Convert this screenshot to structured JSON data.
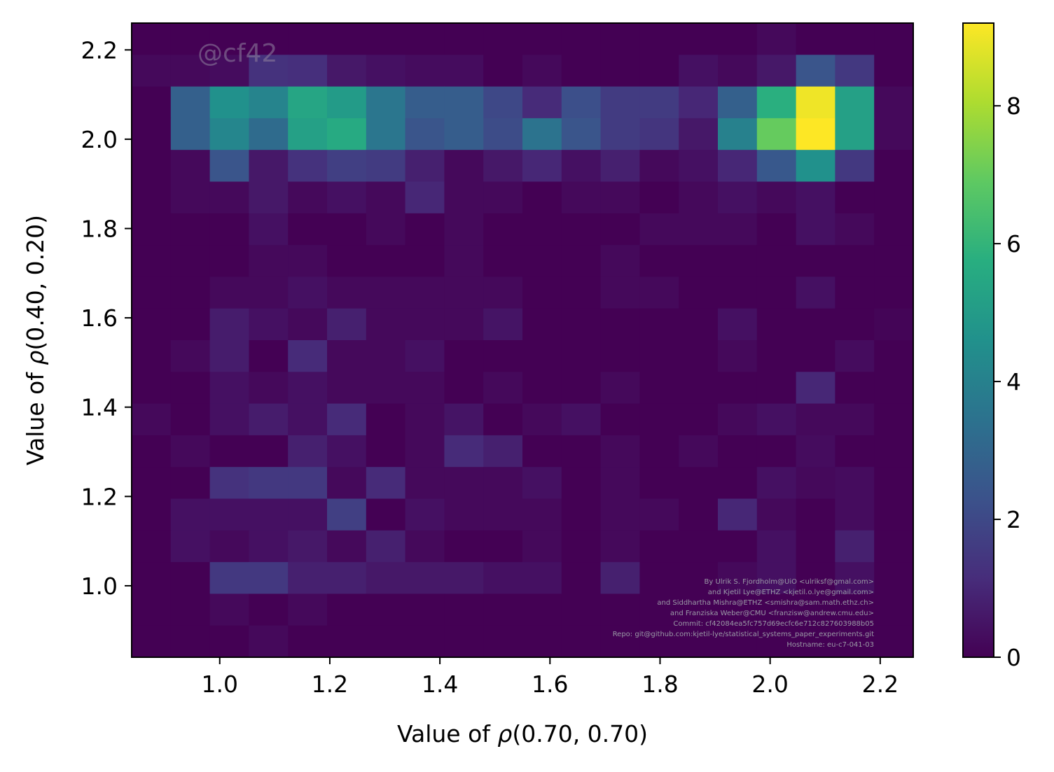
{
  "chart_data": {
    "type": "heatmap",
    "xlabel_prefix": "Value of ",
    "xlabel_symbol": "ρ",
    "xlabel_args": "(0.70, 0.70)",
    "ylabel_prefix": "Value of ",
    "ylabel_symbol": "ρ",
    "ylabel_args": "(0.40, 0.20)",
    "xlim": [
      0.84,
      2.26
    ],
    "ylim": [
      0.84,
      2.26
    ],
    "x_ticks": [
      "1.0",
      "1.2",
      "1.4",
      "1.6",
      "1.8",
      "2.0",
      "2.2"
    ],
    "y_ticks": [
      "1.0",
      "1.2",
      "1.4",
      "1.6",
      "1.8",
      "2.0",
      "2.2"
    ],
    "colorbar_ticks": [
      "0",
      "2",
      "4",
      "6",
      "8"
    ],
    "colorbar_range": [
      0,
      9.2
    ],
    "colormap": "viridis",
    "grid": false,
    "bin_edges": [
      0.84,
      0.911,
      0.982,
      1.053,
      1.124,
      1.195,
      1.266,
      1.337,
      1.408,
      1.479,
      1.55,
      1.621,
      1.692,
      1.763,
      1.834,
      1.905,
      1.976,
      2.047,
      2.118,
      2.189,
      2.26
    ],
    "counts_top_to_bottom": [
      [
        0,
        0,
        0,
        0,
        0,
        0,
        0,
        0,
        0,
        0,
        0,
        0,
        0,
        0,
        0,
        0,
        0.2,
        0,
        0,
        0
      ],
      [
        0.2,
        0.2,
        0.3,
        1.3,
        1.2,
        0.6,
        0.4,
        0.3,
        0.3,
        0,
        0.2,
        0,
        0,
        0,
        0.4,
        0.2,
        0.6,
        2.4,
        1.5,
        0
      ],
      [
        0,
        2.8,
        4.6,
        4.1,
        5.4,
        5.0,
        3.6,
        2.7,
        2.7,
        2.0,
        1.1,
        2.2,
        1.6,
        1.6,
        1.0,
        2.8,
        5.8,
        9.0,
        5.2,
        0.2
      ],
      [
        0,
        2.8,
        4.2,
        3.2,
        5.2,
        5.6,
        3.6,
        2.4,
        2.7,
        2.1,
        3.5,
        2.4,
        1.6,
        1.4,
        0.6,
        4.0,
        7.0,
        9.2,
        5.2,
        0.2
      ],
      [
        0,
        0.2,
        2.4,
        0.6,
        1.3,
        1.7,
        1.6,
        0.8,
        0.2,
        0.6,
        1.0,
        0.4,
        0.8,
        0.2,
        0.4,
        1.0,
        2.5,
        4.6,
        1.5,
        0
      ],
      [
        0,
        0.2,
        0.2,
        0.6,
        0.2,
        0.4,
        0.2,
        1.0,
        0.2,
        0.2,
        0,
        0.2,
        0.2,
        0,
        0.2,
        0.4,
        0.2,
        0.4,
        0,
        0
      ],
      [
        0,
        0,
        0,
        0.4,
        0,
        0,
        0.2,
        0,
        0.2,
        0,
        0,
        0,
        0,
        0.2,
        0.2,
        0.2,
        0,
        0.4,
        0.2,
        0
      ],
      [
        0,
        0,
        0,
        0.2,
        0.2,
        0,
        0,
        0,
        0.2,
        0,
        0,
        0,
        0.2,
        0,
        0,
        0,
        0,
        0,
        0,
        0
      ],
      [
        0,
        0,
        0.2,
        0.2,
        0.4,
        0.2,
        0.2,
        0.2,
        0.2,
        0.2,
        0,
        0,
        0.2,
        0.2,
        0,
        0,
        0,
        0.4,
        0,
        0
      ],
      [
        0,
        0,
        0.7,
        0.4,
        0.2,
        0.8,
        0.2,
        0.2,
        0.2,
        0.5,
        0,
        0,
        0,
        0,
        0,
        0.4,
        0,
        0,
        0,
        0.1
      ],
      [
        0,
        0.2,
        0.7,
        0,
        1.1,
        0.2,
        0.2,
        0.4,
        0,
        0,
        0,
        0,
        0,
        0,
        0,
        0.2,
        0,
        0,
        0.3,
        0
      ],
      [
        0,
        0,
        0.4,
        0.2,
        0.4,
        0.2,
        0.2,
        0.2,
        0,
        0.2,
        0,
        0,
        0.2,
        0,
        0,
        0,
        0,
        1.0,
        0,
        0
      ],
      [
        0.2,
        0,
        0.4,
        0.7,
        0.4,
        1.1,
        0,
        0.2,
        0.5,
        0,
        0.2,
        0.4,
        0,
        0,
        0,
        0.2,
        0.4,
        0.2,
        0.2,
        0
      ],
      [
        0,
        0.2,
        0,
        0,
        0.8,
        0.4,
        0,
        0.2,
        1.1,
        0.8,
        0,
        0,
        0.2,
        0,
        0.2,
        0,
        0,
        0.3,
        0,
        0
      ],
      [
        0,
        0,
        1.3,
        1.5,
        1.5,
        0.2,
        1.1,
        0.2,
        0.2,
        0.2,
        0.4,
        0,
        0.2,
        0,
        0,
        0,
        0.4,
        0.2,
        0.3,
        0
      ],
      [
        0,
        0.4,
        0.4,
        0.4,
        0.4,
        1.7,
        0,
        0.4,
        0.2,
        0.2,
        0.2,
        0,
        0.2,
        0.2,
        0,
        1.0,
        0.2,
        0,
        0.3,
        0
      ],
      [
        0,
        0.4,
        0.2,
        0.4,
        0.6,
        0.2,
        0.8,
        0.2,
        0,
        0,
        0.2,
        0,
        0.2,
        0,
        0,
        0,
        0.4,
        0,
        0.8,
        0
      ],
      [
        0,
        0,
        1.5,
        1.5,
        0.8,
        0.8,
        0.6,
        0.6,
        0.6,
        0.4,
        0.4,
        0,
        0.8,
        0,
        0,
        0.2,
        0.4,
        0,
        0.4,
        0
      ],
      [
        0,
        0,
        0.2,
        0,
        0.2,
        0,
        0,
        0,
        0,
        0,
        0,
        0,
        0,
        0,
        0,
        0,
        0,
        0,
        0,
        0
      ],
      [
        0,
        0,
        0,
        0.2,
        0,
        0,
        0,
        0,
        0,
        0,
        0,
        0,
        0,
        0,
        0,
        0,
        0,
        0,
        0,
        0
      ]
    ]
  },
  "watermark": "@cf42",
  "credits": [
    "By Ulrik S. Fjordholm@UiO <ulriksf@gmal.com>",
    "and Kjetil Lye@ETHZ <kjetil.o.lye@gmail.com>",
    "and Siddhartha Mishra@ETHZ <smishra@sam.math.ethz.ch>",
    "and Franziska Weber@CMU <franzisw@andrew.cmu.edu>",
    "Commit: cf42084ea5fc757d69ecfc6e712c827603988b05",
    "Repo: git@github.com:kjetil-lye/statistical_systems_paper_experiments.git",
    "Hostname: eu-c7-041-03"
  ]
}
